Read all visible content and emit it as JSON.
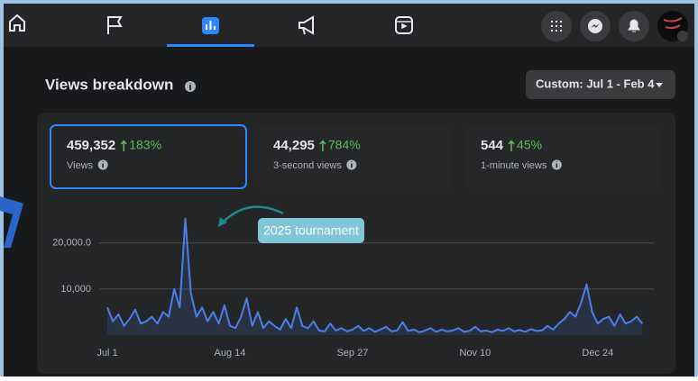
{
  "header": {
    "title": "Views breakdown",
    "date_filter": "Custom: Jul 1 - Feb 4"
  },
  "metrics": [
    {
      "value": "459,352",
      "change": "183%",
      "label": "Views"
    },
    {
      "value": "44,295",
      "change": "784%",
      "label": "3-second views"
    },
    {
      "value": "544",
      "change": "45%",
      "label": "1-minute views"
    }
  ],
  "chart_data": {
    "type": "line",
    "annotation": "2025 tournament",
    "categories": [
      "Jul 1",
      null,
      null,
      null,
      null,
      null,
      null,
      null,
      null,
      null,
      null,
      null,
      null,
      null,
      null,
      null,
      null,
      null,
      null,
      null,
      null,
      null,
      "Aug 14",
      null,
      null,
      null,
      null,
      null,
      null,
      null,
      null,
      null,
      null,
      null,
      null,
      null,
      null,
      null,
      null,
      null,
      null,
      null,
      null,
      null,
      "Sep 27",
      null,
      null,
      null,
      null,
      null,
      null,
      null,
      null,
      null,
      null,
      null,
      null,
      null,
      null,
      null,
      null,
      null,
      null,
      null,
      null,
      null,
      "Nov 10",
      null,
      null,
      null,
      null,
      null,
      null,
      null,
      null,
      null,
      null,
      null,
      null,
      null,
      null,
      null,
      null,
      null,
      null,
      null,
      null,
      null,
      "Dec 24",
      null,
      null,
      null,
      null,
      null,
      null,
      null,
      null
    ],
    "series": [
      {
        "color": "#4a7fe8",
        "values": [
          6000,
          3000,
          4500,
          2000,
          3500,
          5500,
          2500,
          3000,
          4000,
          2500,
          5000,
          4000,
          10000,
          6000,
          25300,
          9000,
          4000,
          6000,
          3000,
          5000,
          2500,
          6500,
          2000,
          1500,
          4000,
          8000,
          2000,
          5000,
          1500,
          3000,
          2000,
          1200,
          3500,
          1500,
          6000,
          2000,
          1500,
          3000,
          1000,
          800,
          2500,
          1000,
          1500,
          800,
          1200,
          2000,
          900,
          1500,
          700,
          1200,
          1800,
          800,
          1000,
          2800,
          900,
          1200,
          600,
          1000,
          1500,
          700,
          1200,
          800,
          1000,
          1500,
          700,
          900,
          1800,
          800,
          1000,
          600,
          1200,
          900,
          1500,
          800,
          1100,
          700,
          1300,
          900,
          1000,
          2000,
          1200,
          2500,
          3500,
          5000,
          4000,
          7000,
          11000,
          5000,
          2500,
          3500,
          4000,
          2000,
          4500,
          2500,
          3000,
          4000,
          2500
        ]
      }
    ],
    "ylim": [
      0,
      27000
    ],
    "yticks": [
      {
        "value": 10000,
        "label": "10,000"
      },
      {
        "value": 20000,
        "label": "20,000.0"
      }
    ],
    "grid": true
  }
}
